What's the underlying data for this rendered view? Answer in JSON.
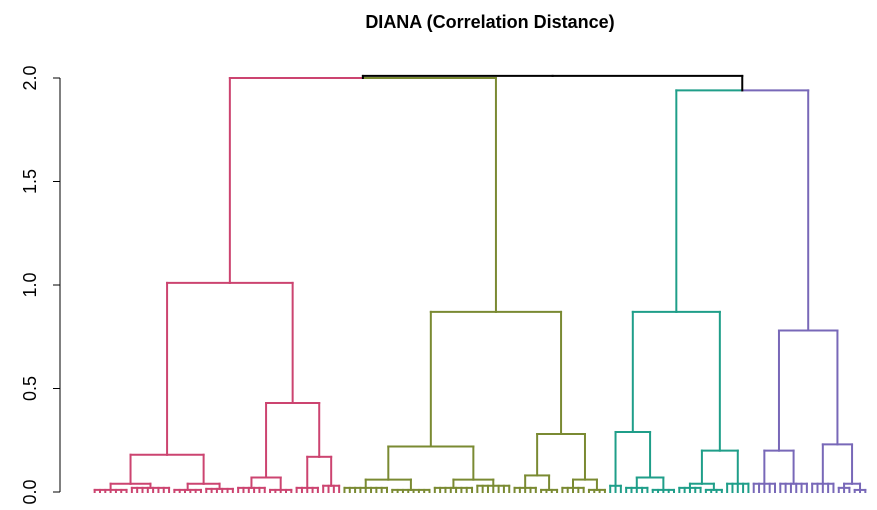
{
  "chart_data": {
    "type": "dendrogram",
    "title": "DIANA (Correlation Distance)",
    "ylim": [
      0,
      2.0
    ],
    "yticks": [
      {
        "value": 0,
        "label": "0.0"
      },
      {
        "value": 0.5,
        "label": "0.5"
      },
      {
        "value": 1.0,
        "label": "1.0"
      },
      {
        "value": 1.5,
        "label": "1.5"
      },
      {
        "value": 2.0,
        "label": "2.0"
      }
    ],
    "tree": {
      "height": 2.01,
      "children": [
        {
          "height": 2.0,
          "children": [
            {
              "height": 1.01,
              "color": "#cc4470",
              "children": [
                {
                  "height": 0.18,
                  "children": [
                    {
                      "height": 0.04,
                      "children": [
                        {
                          "height": 0.01,
                          "leaves": 7
                        },
                        {
                          "height": 0.02,
                          "leaves": 8
                        }
                      ]
                    },
                    {
                      "height": 0.04,
                      "children": [
                        {
                          "height": 0.01,
                          "leaves": 6
                        },
                        {
                          "height": 0.015,
                          "leaves": 6
                        }
                      ]
                    }
                  ]
                },
                {
                  "height": 0.43,
                  "children": [
                    {
                      "height": 0.07,
                      "children": [
                        {
                          "height": 0.02,
                          "leaves": 6
                        },
                        {
                          "height": 0.01,
                          "leaves": 5
                        }
                      ]
                    },
                    {
                      "height": 0.17,
                      "children": [
                        {
                          "height": 0.02,
                          "leaves": 5
                        },
                        {
                          "height": 0.03,
                          "leaves": 4
                        }
                      ]
                    }
                  ]
                }
              ]
            },
            {
              "height": 0.87,
              "color": "#7a8a32",
              "children": [
                {
                  "height": 0.22,
                  "children": [
                    {
                      "height": 0.06,
                      "children": [
                        {
                          "height": 0.02,
                          "leaves": 9
                        },
                        {
                          "height": 0.01,
                          "leaves": 8
                        }
                      ]
                    },
                    {
                      "height": 0.06,
                      "children": [
                        {
                          "height": 0.02,
                          "leaves": 8
                        },
                        {
                          "height": 0.03,
                          "leaves": 7
                        }
                      ]
                    }
                  ]
                },
                {
                  "height": 0.28,
                  "children": [
                    {
                      "height": 0.08,
                      "children": [
                        {
                          "height": 0.02,
                          "leaves": 5
                        },
                        {
                          "height": 0.01,
                          "leaves": 4
                        }
                      ]
                    },
                    {
                      "height": 0.06,
                      "children": [
                        {
                          "height": 0.02,
                          "leaves": 5
                        },
                        {
                          "height": 0.01,
                          "leaves": 4
                        }
                      ]
                    }
                  ]
                }
              ]
            }
          ]
        },
        {
          "height": 1.94,
          "children": [
            {
              "height": 0.87,
              "color": "#1f9e89",
              "children": [
                {
                  "height": 0.29,
                  "children": [
                    {
                      "height": 0.03,
                      "leaves": 3
                    },
                    {
                      "height": 0.07,
                      "children": [
                        {
                          "height": 0.02,
                          "leaves": 5
                        },
                        {
                          "height": 0.01,
                          "leaves": 5
                        }
                      ]
                    }
                  ]
                },
                {
                  "height": 0.2,
                  "children": [
                    {
                      "height": 0.04,
                      "children": [
                        {
                          "height": 0.02,
                          "leaves": 5
                        },
                        {
                          "height": 0.01,
                          "leaves": 4
                        }
                      ]
                    },
                    {
                      "height": 0.04,
                      "leaves": 5
                    }
                  ]
                }
              ]
            },
            {
              "height": 0.78,
              "color": "#7868b8",
              "children": [
                {
                  "height": 0.2,
                  "children": [
                    {
                      "height": 0.04,
                      "leaves": 5
                    },
                    {
                      "height": 0.04,
                      "leaves": 6
                    }
                  ]
                },
                {
                  "height": 0.23,
                  "children": [
                    {
                      "height": 0.04,
                      "leaves": 5
                    },
                    {
                      "height": 0.04,
                      "children": [
                        {
                          "height": 0.02,
                          "leaves": 3
                        },
                        {
                          "height": 0.01,
                          "leaves": 3
                        }
                      ]
                    }
                  ]
                }
              ]
            }
          ]
        }
      ]
    }
  }
}
